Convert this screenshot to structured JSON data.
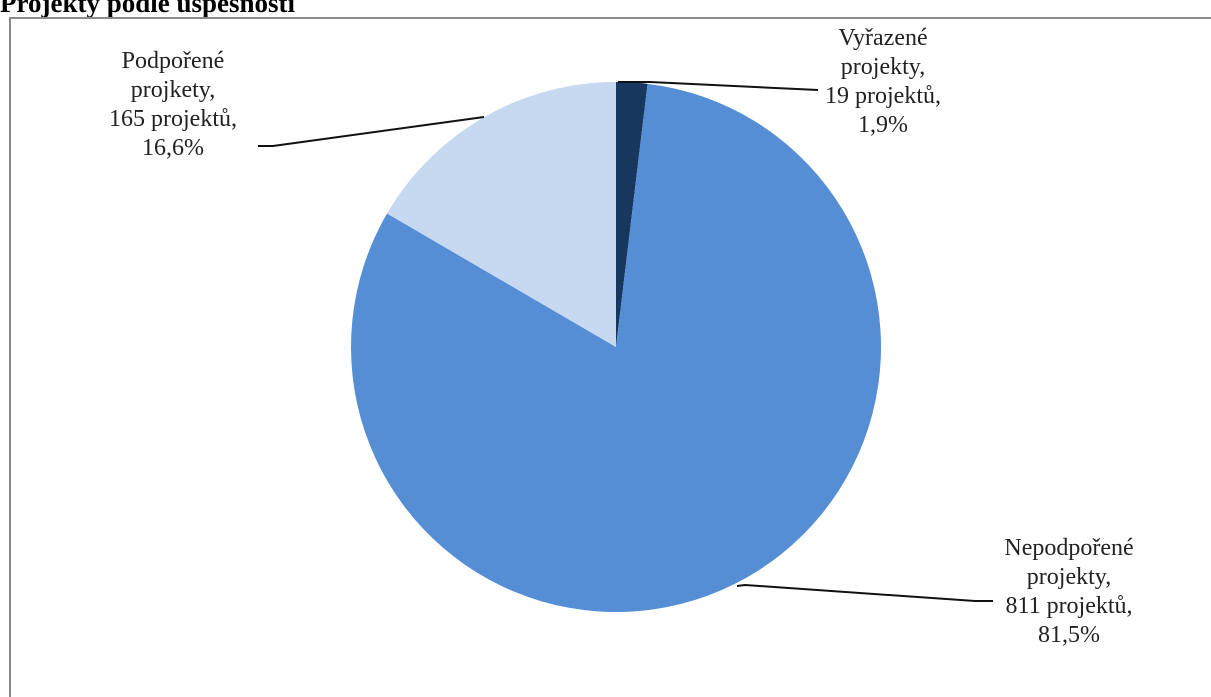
{
  "page": {
    "title": "Projekty podle úspěšnosti"
  },
  "chart_data": {
    "type": "pie",
    "title": "Projekty podle úspěšnosti",
    "slices": [
      {
        "name": "Vyřazené projekty",
        "count": 19,
        "percent": 1.9,
        "color": "#17375e",
        "label_lines": [
          "Vyřazené",
          "projekty,",
          "19 projektů,",
          "1,9%"
        ]
      },
      {
        "name": "Nepodpořené projekty",
        "count": 811,
        "percent": 81.5,
        "color": "#558ed5",
        "label_lines": [
          "Nepodpořené",
          "projekty,",
          "811 projektů,",
          "81,5%"
        ]
      },
      {
        "name": "Podpořené projkety",
        "count": 165,
        "percent": 16.6,
        "color": "#c6d9f1",
        "label_lines": [
          "Podpořené",
          "projkety,",
          "165 projektů,",
          "16,6%"
        ]
      }
    ],
    "legend": "none"
  }
}
